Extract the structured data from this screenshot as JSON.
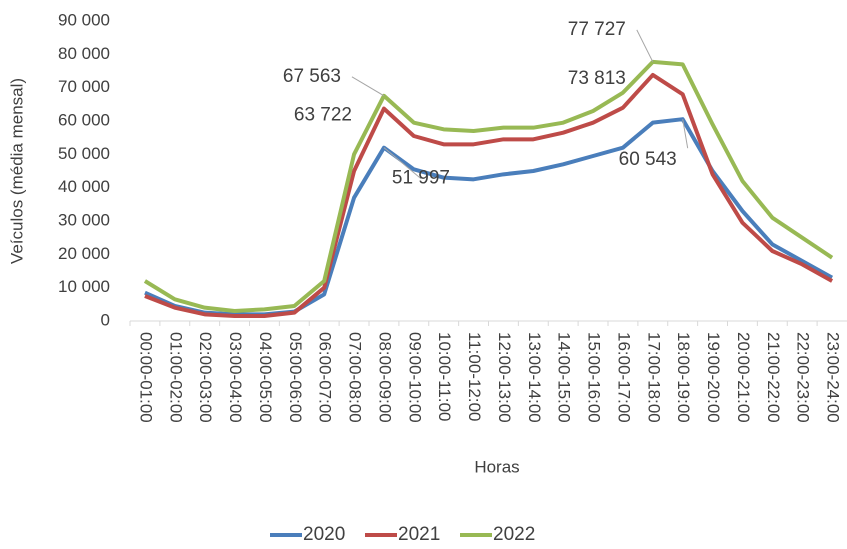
{
  "chart_data": {
    "type": "line",
    "x_label": "Horas",
    "y_label": "Veículos (média mensal)",
    "categories": [
      "00:00-01:00",
      "01:00-02:00",
      "02:00-03:00",
      "03:00-04:00",
      "04:00-05:00",
      "05:00-06:00",
      "06:00-07:00",
      "07:00-08:00",
      "08:00-09:00",
      "09:00-10:00",
      "10:00-11:00",
      "11:00-12:00",
      "12:00-13:00",
      "13:00-14:00",
      "14:00-15:00",
      "15:00-16:00",
      "16:00-17:00",
      "17:00-18:00",
      "18:00-19:00",
      "19:00-20:00",
      "20:00-21:00",
      "21:00-22:00",
      "22:00-23:00",
      "23:00-24:00"
    ],
    "series": [
      {
        "name": "2020",
        "color": "#4a7ebb",
        "values": [
          8500,
          4500,
          2500,
          2000,
          2000,
          2800,
          8000,
          37000,
          51997,
          45500,
          43000,
          42500,
          44000,
          45000,
          47000,
          49500,
          52000,
          59500,
          60543,
          45000,
          33000,
          23000,
          18000,
          13000
        ],
        "value_labels": [
          null,
          null,
          null,
          null,
          null,
          null,
          null,
          null,
          "51 997",
          null,
          null,
          null,
          null,
          null,
          null,
          null,
          null,
          null,
          "60 543",
          null,
          null,
          null,
          null,
          null
        ]
      },
      {
        "name": "2021",
        "color": "#be4b48",
        "values": [
          7500,
          4000,
          2000,
          1500,
          1500,
          2500,
          10000,
          45000,
          63722,
          55500,
          53000,
          53000,
          54500,
          54500,
          56500,
          59500,
          64000,
          73813,
          68000,
          44000,
          29500,
          21000,
          17000,
          12000
        ],
        "value_labels": [
          null,
          null,
          null,
          null,
          null,
          null,
          null,
          null,
          "63 722",
          null,
          null,
          null,
          null,
          null,
          null,
          null,
          null,
          "73 813",
          null,
          null,
          null,
          null,
          null,
          null
        ]
      },
      {
        "name": "2022",
        "color": "#98b954",
        "values": [
          12000,
          6500,
          4000,
          3000,
          3500,
          4500,
          12000,
          50000,
          67563,
          59500,
          57500,
          57000,
          58000,
          58000,
          59500,
          63000,
          68500,
          77727,
          77000,
          59000,
          42000,
          31000,
          25000,
          19000
        ],
        "value_labels": [
          null,
          null,
          null,
          null,
          null,
          null,
          null,
          null,
          "67 563",
          null,
          null,
          null,
          null,
          null,
          null,
          null,
          null,
          "77 727",
          null,
          null,
          null,
          null,
          null,
          null
        ]
      }
    ],
    "ylim": [
      0,
      90000
    ],
    "yticks": [
      0,
      {
        "value": 10000,
        "label": "10 000"
      },
      {
        "value": 20000,
        "label": "20 000"
      },
      {
        "value": 30000,
        "label": "30 000"
      },
      {
        "value": 40000,
        "label": "40 000"
      },
      {
        "value": 50000,
        "label": "50 000"
      },
      {
        "value": 60000,
        "label": "60 000"
      },
      {
        "value": 70000,
        "label": "70 000"
      },
      {
        "value": 80000,
        "label": "80 000"
      },
      {
        "value": 90000,
        "label": "90 000"
      }
    ],
    "legend": "bottom"
  }
}
